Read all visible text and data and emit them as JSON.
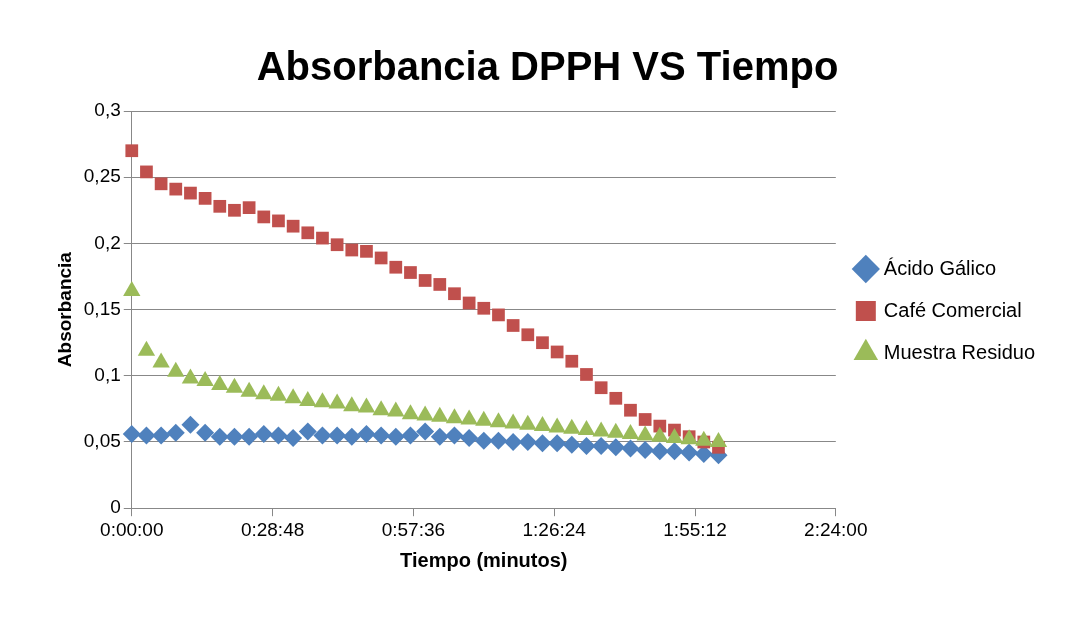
{
  "chart_data": {
    "type": "scatter",
    "title": "Absorbancia DPPH VS Tiempo",
    "xlabel": "Tiempo (minutos)",
    "ylabel": "Absorbancia",
    "x": [
      0,
      0.05,
      0.1,
      0.15,
      0.2,
      0.25,
      0.3,
      0.35,
      0.4,
      0.45,
      0.5,
      0.55,
      0.6,
      0.65,
      0.7,
      0.75,
      0.8,
      0.85,
      0.9,
      0.95,
      1,
      1.05,
      1.1,
      1.15,
      1.2,
      1.25,
      1.3,
      1.35,
      1.4,
      1.45,
      1.5,
      1.55,
      1.6,
      1.65,
      1.7,
      1.75,
      1.8,
      1.85,
      1.9,
      1.95,
      2
    ],
    "series": [
      {
        "name": "Ácido Gálico",
        "color": "#4f81bd",
        "marker": "diamond",
        "values": [
          0.056,
          0.055,
          0.055,
          0.057,
          0.063,
          0.057,
          0.054,
          0.054,
          0.054,
          0.056,
          0.055,
          0.053,
          0.058,
          0.055,
          0.055,
          0.054,
          0.056,
          0.055,
          0.054,
          0.055,
          0.058,
          0.054,
          0.055,
          0.053,
          0.051,
          0.051,
          0.05,
          0.05,
          0.049,
          0.049,
          0.048,
          0.047,
          0.047,
          0.046,
          0.045,
          0.044,
          0.043,
          0.043,
          0.042,
          0.041,
          0.04
        ]
      },
      {
        "name": "Café Comercial",
        "color": "#c0504d",
        "marker": "square",
        "values": [
          0.27,
          0.254,
          0.245,
          0.241,
          0.238,
          0.234,
          0.228,
          0.225,
          0.227,
          0.22,
          0.217,
          0.213,
          0.208,
          0.204,
          0.199,
          0.195,
          0.194,
          0.189,
          0.182,
          0.178,
          0.172,
          0.169,
          0.162,
          0.155,
          0.151,
          0.146,
          0.138,
          0.131,
          0.125,
          0.118,
          0.111,
          0.101,
          0.091,
          0.083,
          0.074,
          0.067,
          0.062,
          0.059,
          0.054,
          0.05,
          0.046
        ]
      },
      {
        "name": "Muestra Residuo",
        "color": "#9bbb59",
        "marker": "triangle",
        "values": [
          0.164,
          0.119,
          0.11,
          0.103,
          0.098,
          0.096,
          0.093,
          0.091,
          0.088,
          0.086,
          0.085,
          0.083,
          0.081,
          0.08,
          0.079,
          0.077,
          0.076,
          0.074,
          0.073,
          0.071,
          0.07,
          0.069,
          0.068,
          0.067,
          0.066,
          0.065,
          0.064,
          0.063,
          0.062,
          0.061,
          0.06,
          0.059,
          0.058,
          0.057,
          0.056,
          0.055,
          0.054,
          0.053,
          0.052,
          0.051,
          0.05
        ]
      }
    ],
    "xlim": [
      0,
      2.4
    ],
    "xticks": [
      {
        "value": 0,
        "label": "0:00:00"
      },
      {
        "value": 0.48,
        "label": "0:28:48"
      },
      {
        "value": 0.96,
        "label": "0:57:36"
      },
      {
        "value": 1.44,
        "label": "1:26:24"
      },
      {
        "value": 1.92,
        "label": "1:55:12"
      },
      {
        "value": 2.4,
        "label": "2:24:00"
      }
    ],
    "ylim": [
      0,
      0.3
    ],
    "yticks": [
      {
        "value": 0,
        "label": "0"
      },
      {
        "value": 0.05,
        "label": "0,05"
      },
      {
        "value": 0.1,
        "label": "0,1"
      },
      {
        "value": 0.15,
        "label": "0,15"
      },
      {
        "value": 0.2,
        "label": "0,2"
      },
      {
        "value": 0.25,
        "label": "0,25"
      },
      {
        "value": 0.3,
        "label": "0,3"
      }
    ],
    "grid": "y",
    "legend": "right"
  }
}
